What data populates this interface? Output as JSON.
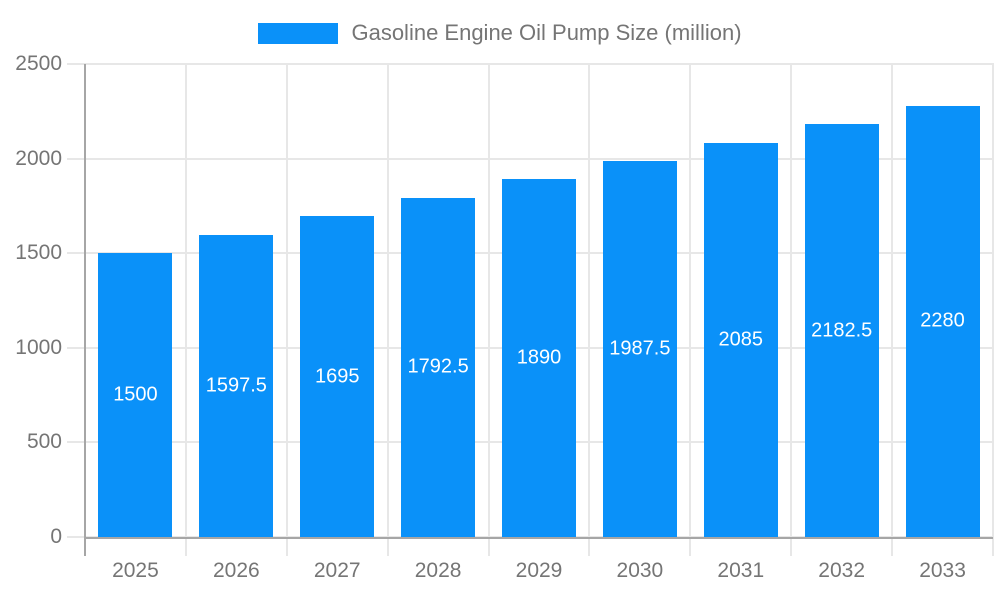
{
  "chart_data": {
    "type": "bar",
    "title": "Gasoline Engine Oil Pump Size (million)",
    "categories": [
      "2025",
      "2026",
      "2027",
      "2028",
      "2029",
      "2030",
      "2031",
      "2032",
      "2033"
    ],
    "values": [
      1500,
      1597.5,
      1695,
      1792.5,
      1890,
      1987.5,
      2085,
      2182.5,
      2280
    ],
    "bar_value_labels": [
      "1500",
      "1597.5",
      "1695",
      "1792.5",
      "1890",
      "1987.5",
      "2085",
      "2182.5",
      "2280"
    ],
    "xlabel": "",
    "ylabel": "",
    "ylim": [
      0,
      2500
    ],
    "yticks": [
      0,
      500,
      1000,
      1500,
      2000,
      2500
    ],
    "grid": true,
    "legend_position": "top-center",
    "colors": {
      "bar": "#0a91f9",
      "bar_label_text": "#ffffff",
      "axis_text": "#757575",
      "legend_text": "#757575",
      "gridline": "#e7e7e7",
      "axis_line": "#a6a6a6",
      "background": "#ffffff"
    }
  },
  "legend": {
    "label": "Gasoline Engine Oil Pump Size (million)",
    "swatch_icon": "blue-rect-swatch"
  }
}
